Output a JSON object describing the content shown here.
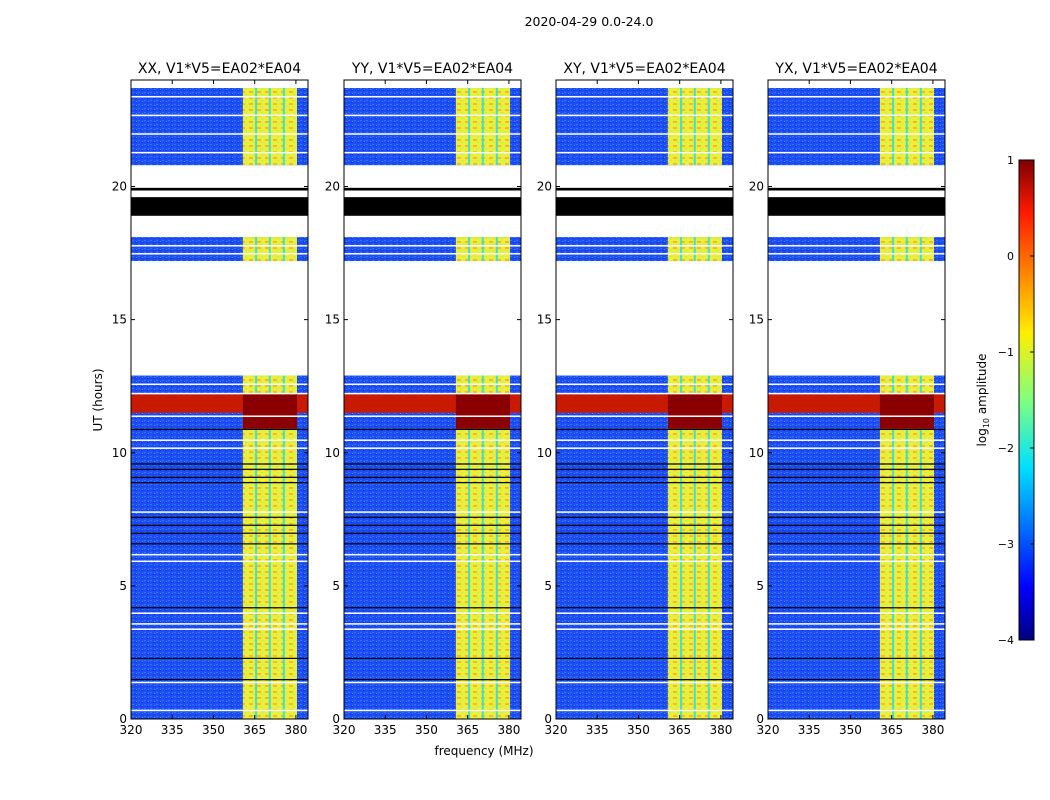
{
  "chart_data": {
    "type": "heatmap",
    "title": "2020-04-29 0.0-24.0",
    "xlabel": "frequency (MHz)",
    "ylabel": "UT (hours)",
    "xlim": [
      320,
      384.4
    ],
    "ylim": [
      0,
      24
    ],
    "xticks": [
      320,
      335,
      350,
      365,
      380
    ],
    "yticks": [
      0,
      5,
      10,
      15,
      20
    ],
    "panels": [
      {
        "title": "XX, V1*V5=EA02*EA04"
      },
      {
        "title": "YY, V1*V5=EA02*EA04"
      },
      {
        "title": "XY, V1*V5=EA02*EA04"
      },
      {
        "title": "YX, V1*V5=EA02*EA04"
      }
    ],
    "data_segments_hours": [
      [
        0,
        12.9
      ],
      [
        17.2,
        18.1
      ],
      [
        20.8,
        23.7
      ]
    ],
    "flagged_black_hours": [
      [
        18.9,
        19.6
      ],
      [
        19.85,
        19.95
      ]
    ],
    "rfi_band_mhz": [
      360.7,
      380.4
    ],
    "rfi_gap_lines_mhz": [
      365.5,
      370.5,
      375.6
    ],
    "strong_rfi_hours": [
      11.5,
      12.2
    ],
    "white_lines_hours": [
      0.35,
      1.4,
      3.4,
      3.6,
      4.0,
      5.95,
      6.2,
      7.8,
      10.2,
      10.5,
      11.4,
      12.25,
      12.6,
      17.5,
      17.8,
      21.3,
      22.0,
      22.7,
      23.4
    ],
    "black_lines_hours": [
      1.5,
      2.3,
      4.2,
      6.6,
      7.0,
      7.3,
      7.6,
      8.9,
      9.1,
      9.4,
      9.6,
      10.9
    ],
    "colorbar": {
      "label": "log10 amplitude",
      "label_main": "log",
      "label_sub": "10",
      "label_rest": " amplitude",
      "range": [
        -4,
        1
      ],
      "ticks": [
        "1",
        "0",
        "−1",
        "−2",
        "−3",
        "−4"
      ],
      "tick_values": [
        1,
        0,
        -1,
        -2,
        -3,
        -4
      ],
      "colormap": "jet"
    }
  }
}
